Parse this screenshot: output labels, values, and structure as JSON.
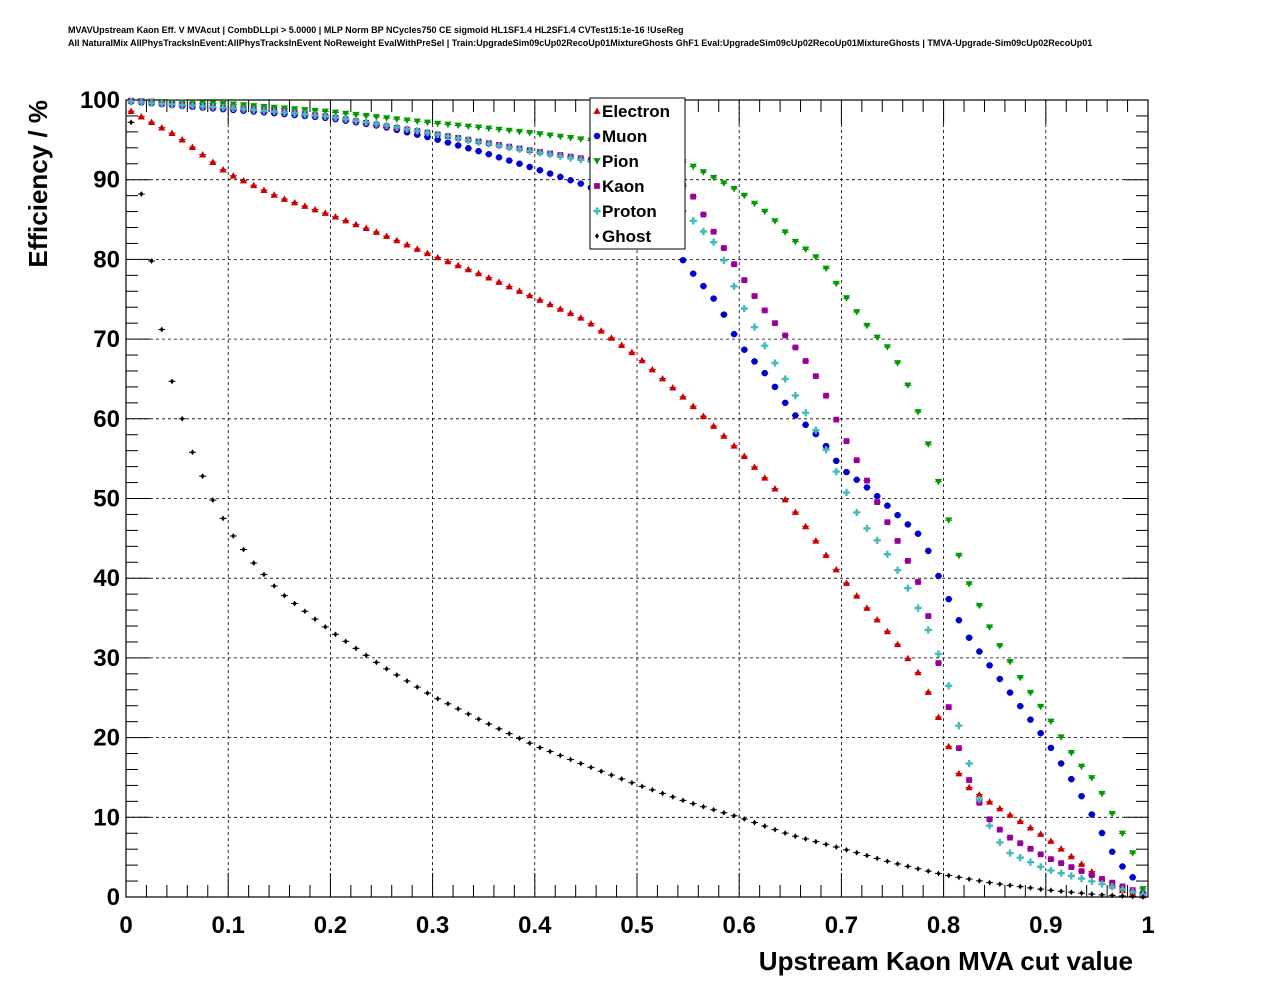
{
  "header": {
    "line1": "MVAVUpstream Kaon Eff. V MVAcut | CombDLLpi > 5.0000 | MLP Norm BP NCycles750 CE sigmoid HL1SF1.4 HL2SF1.4 CVTest15:1e-16 !UseReg",
    "line2": "All NaturalMix AllPhysTracksInEvent:AllPhysTracksInEvent NoReweight EvalWithPreSel | Train:UpgradeSim09cUp02RecoUp01MixtureGhosts GhF1 Eval:UpgradeSim09cUp02RecoUp01MixtureGhosts | TMVA-Upgrade-Sim09cUp02RecoUp01"
  },
  "chart_data": {
    "type": "scatter",
    "xlabel": "Upstream Kaon MVA cut value",
    "ylabel": "Efficiency / %",
    "xlim": [
      0,
      1
    ],
    "ylim": [
      0,
      100
    ],
    "xticks": [
      "0",
      "0.1",
      "0.2",
      "0.3",
      "0.4",
      "0.5",
      "0.6",
      "0.7",
      "0.8",
      "0.9",
      "1"
    ],
    "yticks": [
      "0",
      "10",
      "20",
      "30",
      "40",
      "50",
      "60",
      "70",
      "80",
      "90",
      "100"
    ],
    "grid": true,
    "legend_position": "top-center",
    "series": [
      {
        "name": "Electron",
        "color": "#cc0000",
        "marker": "triangle-up",
        "points": [
          [
            0.005,
            98.6
          ],
          [
            0.05,
            95.5
          ],
          [
            0.1,
            90.8
          ],
          [
            0.15,
            87.8
          ],
          [
            0.2,
            85.6
          ],
          [
            0.25,
            83.2
          ],
          [
            0.3,
            80.5
          ],
          [
            0.35,
            78.0
          ],
          [
            0.4,
            75.2
          ],
          [
            0.45,
            72.4
          ],
          [
            0.5,
            67.9
          ],
          [
            0.55,
            62.2
          ],
          [
            0.6,
            56.0
          ],
          [
            0.65,
            49.2
          ],
          [
            0.7,
            40.2
          ],
          [
            0.72,
            37.0
          ],
          [
            0.75,
            32.6
          ],
          [
            0.78,
            27.3
          ],
          [
            0.8,
            21.0
          ],
          [
            0.81,
            16.8
          ],
          [
            0.82,
            14.2
          ],
          [
            0.85,
            11.5
          ],
          [
            0.9,
            7.5
          ],
          [
            0.95,
            2.7
          ],
          [
            0.97,
            1.0
          ],
          [
            0.995,
            0.2
          ]
        ]
      },
      {
        "name": "Muon",
        "color": "#0000cc",
        "marker": "circle",
        "points": [
          [
            0.005,
            99.8
          ],
          [
            0.05,
            99.3
          ],
          [
            0.1,
            98.8
          ],
          [
            0.15,
            98.3
          ],
          [
            0.2,
            97.7
          ],
          [
            0.25,
            96.7
          ],
          [
            0.3,
            95.2
          ],
          [
            0.35,
            93.4
          ],
          [
            0.4,
            91.4
          ],
          [
            0.45,
            89.3
          ],
          [
            0.5,
            86.4
          ],
          [
            0.53,
            82.6
          ],
          [
            0.55,
            79.0
          ],
          [
            0.58,
            74.3
          ],
          [
            0.6,
            69.4
          ],
          [
            0.63,
            65.0
          ],
          [
            0.65,
            61.0
          ],
          [
            0.68,
            57.5
          ],
          [
            0.7,
            53.8
          ],
          [
            0.73,
            50.9
          ],
          [
            0.75,
            48.5
          ],
          [
            0.78,
            45.0
          ],
          [
            0.8,
            38.7
          ],
          [
            0.82,
            33.4
          ],
          [
            0.85,
            28.2
          ],
          [
            0.88,
            23.1
          ],
          [
            0.9,
            19.7
          ],
          [
            0.93,
            13.8
          ],
          [
            0.95,
            9.2
          ],
          [
            0.97,
            4.5
          ],
          [
            0.99,
            1.8
          ],
          [
            0.995,
            0.5
          ]
        ]
      },
      {
        "name": "Pion",
        "color": "#009900",
        "marker": "triangle-down",
        "points": [
          [
            0.005,
            99.9
          ],
          [
            0.05,
            99.7
          ],
          [
            0.1,
            99.5
          ],
          [
            0.15,
            99.0
          ],
          [
            0.2,
            98.5
          ],
          [
            0.25,
            97.8
          ],
          [
            0.3,
            97.1
          ],
          [
            0.35,
            96.5
          ],
          [
            0.4,
            95.8
          ],
          [
            0.45,
            95.0
          ],
          [
            0.5,
            94.0
          ],
          [
            0.55,
            92.0
          ],
          [
            0.6,
            88.5
          ],
          [
            0.63,
            85.5
          ],
          [
            0.65,
            82.7
          ],
          [
            0.68,
            79.8
          ],
          [
            0.7,
            76.0
          ],
          [
            0.73,
            70.8
          ],
          [
            0.75,
            68.4
          ],
          [
            0.77,
            62.8
          ],
          [
            0.78,
            58.9
          ],
          [
            0.79,
            54.7
          ],
          [
            0.8,
            49.5
          ],
          [
            0.82,
            40.6
          ],
          [
            0.85,
            32.5
          ],
          [
            0.88,
            26.5
          ],
          [
            0.9,
            23.0
          ],
          [
            0.93,
            17.1
          ],
          [
            0.95,
            14.2
          ],
          [
            0.97,
            9.2
          ],
          [
            0.985,
            5.5
          ],
          [
            0.995,
            1.0
          ]
        ]
      },
      {
        "name": "Kaon",
        "color": "#990099",
        "marker": "square",
        "points": [
          [
            0.005,
            99.9
          ],
          [
            0.05,
            99.5
          ],
          [
            0.1,
            99.0
          ],
          [
            0.15,
            98.6
          ],
          [
            0.2,
            97.9
          ],
          [
            0.25,
            96.8
          ],
          [
            0.3,
            95.8
          ],
          [
            0.35,
            94.7
          ],
          [
            0.4,
            93.6
          ],
          [
            0.45,
            92.6
          ],
          [
            0.5,
            91.5
          ],
          [
            0.55,
            89.0
          ],
          [
            0.57,
            84.5
          ],
          [
            0.59,
            80.4
          ],
          [
            0.62,
            74.4
          ],
          [
            0.64,
            71.2
          ],
          [
            0.66,
            68.2
          ],
          [
            0.68,
            64.4
          ],
          [
            0.7,
            58.4
          ],
          [
            0.72,
            53.6
          ],
          [
            0.74,
            48.2
          ],
          [
            0.76,
            43.5
          ],
          [
            0.78,
            38.2
          ],
          [
            0.8,
            26.4
          ],
          [
            0.82,
            16.1
          ],
          [
            0.84,
            10.4
          ],
          [
            0.86,
            7.8
          ],
          [
            0.9,
            5.0
          ],
          [
            0.95,
            2.5
          ],
          [
            0.995,
            0.4
          ]
        ]
      },
      {
        "name": "Proton",
        "color": "#44bbbb",
        "marker": "cross",
        "points": [
          [
            0.005,
            99.8
          ],
          [
            0.05,
            99.4
          ],
          [
            0.1,
            99.0
          ],
          [
            0.15,
            98.5
          ],
          [
            0.2,
            97.9
          ],
          [
            0.25,
            96.9
          ],
          [
            0.3,
            95.8
          ],
          [
            0.35,
            94.6
          ],
          [
            0.4,
            93.5
          ],
          [
            0.45,
            92.4
          ],
          [
            0.5,
            91.2
          ],
          [
            0.55,
            85.5
          ],
          [
            0.58,
            81.5
          ],
          [
            0.6,
            75.0
          ],
          [
            0.63,
            68.0
          ],
          [
            0.65,
            64.0
          ],
          [
            0.68,
            57.5
          ],
          [
            0.7,
            52.0
          ],
          [
            0.72,
            47.0
          ],
          [
            0.74,
            44.0
          ],
          [
            0.76,
            40.0
          ],
          [
            0.78,
            35.0
          ],
          [
            0.8,
            29.0
          ],
          [
            0.82,
            19.0
          ],
          [
            0.84,
            10.0
          ],
          [
            0.86,
            5.8
          ],
          [
            0.9,
            3.5
          ],
          [
            0.95,
            1.8
          ],
          [
            0.995,
            0.3
          ]
        ]
      },
      {
        "name": "Ghost",
        "color": "#000000",
        "marker": "diamond",
        "points": [
          [
            0.005,
            97.2
          ],
          [
            0.015,
            88.2
          ],
          [
            0.025,
            79.8
          ],
          [
            0.035,
            71.2
          ],
          [
            0.045,
            64.7
          ],
          [
            0.055,
            60.0
          ],
          [
            0.065,
            55.8
          ],
          [
            0.075,
            52.8
          ],
          [
            0.085,
            49.8
          ],
          [
            0.095,
            47.5
          ],
          [
            0.105,
            45.3
          ],
          [
            0.115,
            43.6
          ],
          [
            0.125,
            41.9
          ],
          [
            0.15,
            38.3
          ],
          [
            0.2,
            33.4
          ],
          [
            0.25,
            29.0
          ],
          [
            0.3,
            25.2
          ],
          [
            0.35,
            22.0
          ],
          [
            0.4,
            19.0
          ],
          [
            0.45,
            16.5
          ],
          [
            0.5,
            14.1
          ],
          [
            0.55,
            11.9
          ],
          [
            0.6,
            10.0
          ],
          [
            0.65,
            7.8
          ],
          [
            0.7,
            6.1
          ],
          [
            0.75,
            4.3
          ],
          [
            0.8,
            2.8
          ],
          [
            0.85,
            1.7
          ],
          [
            0.9,
            0.9
          ],
          [
            0.95,
            0.3
          ],
          [
            0.995,
            0.0
          ]
        ]
      }
    ]
  }
}
